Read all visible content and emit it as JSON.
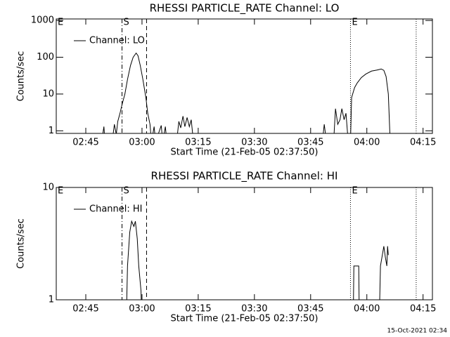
{
  "chart_data": [
    {
      "type": "line",
      "title": "RHESSI PARTICLE_RATE Channel: LO",
      "xlabel": "Start Time (21-Feb-05 02:37:50)",
      "ylabel": "Counts/sec",
      "log_y": true,
      "legend": "upper left",
      "xlim": [
        "02:37:07",
        "04:17:30"
      ],
      "xticks": [
        "02:45",
        "03:00",
        "03:15",
        "03:30",
        "03:45",
        "04:00",
        "04:15"
      ],
      "ylim": [
        0.85,
        1100
      ],
      "yticks": [
        1,
        10,
        100,
        1000
      ],
      "vlines": [
        {
          "x": "02:54:40",
          "style": "dashdot"
        },
        {
          "x": "03:01:13",
          "style": "dashed"
        },
        {
          "x": "03:55:38",
          "style": "dotted"
        },
        {
          "x": "04:13:10",
          "style": "dotted"
        }
      ],
      "annotations": [
        {
          "text": "E",
          "x": "02:37:07"
        },
        {
          "text": "S",
          "x": "02:54:40"
        },
        {
          "text": "E",
          "x": "03:55:38"
        }
      ],
      "x": [
        "02:49:14",
        "02:49:50",
        "02:50:08",
        "02:52:02",
        "02:52:38",
        "02:53:08",
        "02:53:32",
        "02:54:08",
        "02:54:38",
        "02:55:26",
        "02:56:08",
        "02:56:56",
        "02:57:38",
        "02:58:26",
        "02:58:56",
        "02:59:32",
        "03:00:14",
        "03:01:02",
        "03:01:32",
        "03:02:08",
        "03:02:32",
        "03:03:14",
        "03:03:38",
        "03:05:08",
        "03:05:32",
        "03:06:14",
        "03:06:38",
        "03:09:14",
        "03:09:50",
        "03:10:20",
        "03:10:56",
        "03:11:26",
        "03:12:02",
        "03:12:38",
        "03:13:08",
        "03:13:44",
        "03:48:08",
        "03:48:38",
        "03:49:14",
        "03:51:08",
        "03:51:38",
        "03:52:14",
        "03:52:50",
        "03:53:20",
        "03:53:56",
        "03:54:26",
        "03:55:02",
        "03:55:38",
        "03:55:56",
        "03:56:44",
        "03:57:26",
        "03:58:32",
        "03:59:44",
        "04:01:14",
        "04:02:44",
        "04:03:50",
        "04:04:32",
        "04:05:08",
        "04:05:44",
        "04:06:14"
      ],
      "series": [
        {
          "name": "Channel: LO",
          "color": "#000000",
          "values": [
            0.5,
            1.3,
            0.5,
            0.5,
            1.5,
            0.8,
            1.8,
            3,
            5,
            10,
            25,
            60,
            100,
            130,
            110,
            60,
            25,
            8,
            3,
            1.5,
            0.5,
            1.3,
            0.5,
            1.4,
            0.5,
            1.3,
            0.5,
            0.5,
            1.8,
            1.2,
            2.5,
            1.3,
            2.3,
            1.3,
            2,
            0.5,
            0.5,
            1.5,
            0.5,
            0.5,
            4,
            1.5,
            2,
            4,
            2,
            3,
            0.5,
            0.5,
            8,
            15,
            20,
            28,
            35,
            42,
            45,
            48,
            44,
            30,
            10,
            0.5
          ]
        }
      ]
    },
    {
      "type": "line",
      "title": "RHESSI PARTICLE_RATE Channel: HI",
      "xlabel": "Start Time (21-Feb-05 02:37:50)",
      "ylabel": "Counts/sec",
      "log_y": true,
      "legend": "upper left",
      "xlim": [
        "02:37:07",
        "04:17:30"
      ],
      "xticks": [
        "02:45",
        "03:00",
        "03:15",
        "03:30",
        "03:45",
        "04:00",
        "04:15"
      ],
      "ylim": [
        1,
        10
      ],
      "yticks": [
        1,
        10
      ],
      "vlines": [
        {
          "x": "02:54:40",
          "style": "dashdot"
        },
        {
          "x": "03:01:13",
          "style": "dashed"
        },
        {
          "x": "03:55:38",
          "style": "dotted"
        },
        {
          "x": "04:13:10",
          "style": "dotted"
        }
      ],
      "annotations": [
        {
          "text": "E",
          "x": "02:37:07"
        },
        {
          "text": "S",
          "x": "02:54:40"
        },
        {
          "text": "E",
          "x": "03:55:38"
        }
      ],
      "x": [
        "02:55:44",
        "02:56:08",
        "02:56:44",
        "02:57:14",
        "02:57:50",
        "02:58:14",
        "02:58:44",
        "02:59:08",
        "02:59:44",
        "03:00:02",
        "03:56:20",
        "03:56:32",
        "03:57:50",
        "03:58:02",
        "04:03:14",
        "04:03:38",
        "04:04:08",
        "04:04:32",
        "04:04:56",
        "04:05:20",
        "04:05:32",
        "04:05:44"
      ],
      "series": [
        {
          "name": "Channel: HI",
          "color": "#000000",
          "values": [
            0.5,
            2,
            4,
            5,
            4.5,
            5,
            3.5,
            2,
            1.2,
            0.5,
            0.5,
            2,
            2,
            0.5,
            0.5,
            2,
            2.5,
            3,
            2.4,
            2,
            3,
            2.5
          ]
        }
      ]
    }
  ],
  "footer": "15-Oct-2021 02:34"
}
